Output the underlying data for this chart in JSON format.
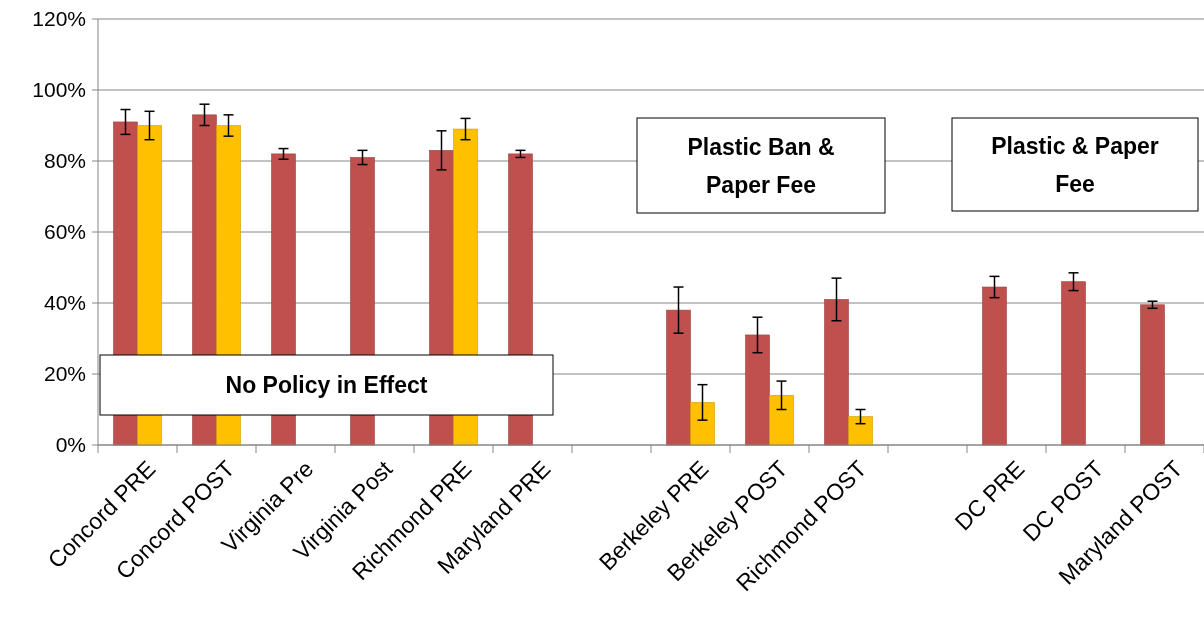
{
  "chart_data": {
    "type": "bar",
    "categories": [
      "Concord PRE",
      "Concord POST",
      "Virginia Pre",
      "Virginia Post",
      "Richmond PRE",
      "Maryland PRE",
      null,
      "Berkeley PRE",
      "Berkeley POST",
      "Richmond POST",
      null,
      "DC PRE",
      "DC POST",
      "Maryland POST"
    ],
    "series": [
      {
        "color": "#c0504d",
        "values": [
          91,
          93,
          82,
          81,
          83,
          82,
          null,
          38,
          31,
          41,
          null,
          44.5,
          46,
          39.5
        ],
        "errors": [
          3.5,
          3,
          1.5,
          2,
          5.5,
          1,
          null,
          6.5,
          5,
          6,
          null,
          3,
          2.5,
          1
        ]
      },
      {
        "color": "#ffc000",
        "values": [
          90,
          90,
          null,
          null,
          89,
          null,
          null,
          12,
          14,
          8,
          null,
          null,
          null,
          null
        ],
        "errors": [
          4,
          3,
          null,
          null,
          3,
          null,
          null,
          5,
          4,
          2,
          null,
          null,
          null,
          null
        ]
      }
    ],
    "ylim": [
      0,
      120
    ],
    "yticks": [
      {
        "value": 0,
        "label": "0%"
      },
      {
        "value": 20,
        "label": "20%"
      },
      {
        "value": 40,
        "label": "40%"
      },
      {
        "value": 60,
        "label": "60%"
      },
      {
        "value": 80,
        "label": "80%"
      },
      {
        "value": 100,
        "label": "100%"
      },
      {
        "value": 120,
        "label": "120%"
      }
    ],
    "grid": "y",
    "annotations": [
      "No Policy in Effect",
      "Plastic Ban &\nPaper Fee",
      "Plastic & Paper\nFee"
    ]
  }
}
